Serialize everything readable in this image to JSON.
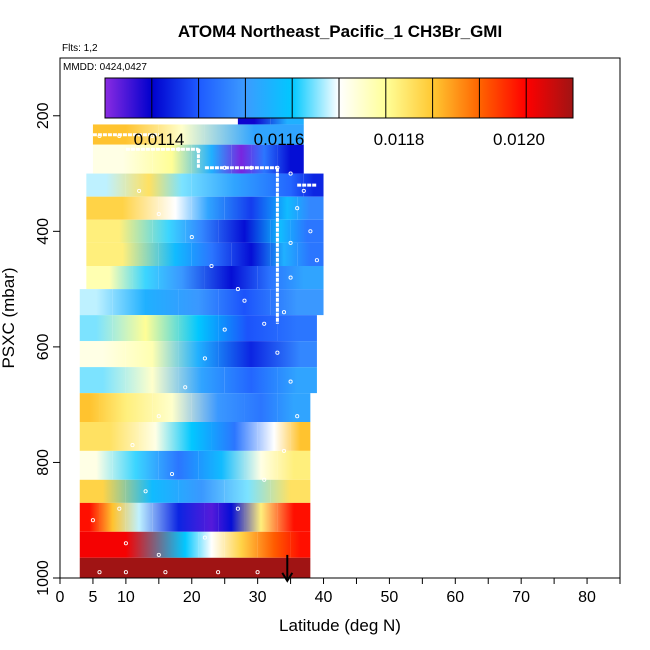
{
  "chart_data": {
    "type": "heatmap",
    "title": "ATOM4 Northeast_Pacific_1 CH3Br_GMI",
    "flights_note": "Flts: 1,2",
    "dates_note": "MMDD: 0424,0427",
    "xlabel": "Latitude (deg N)",
    "ylabel": "PSXC (mbar)",
    "xlim": [
      0,
      85
    ],
    "ylim": [
      1000,
      100
    ],
    "x_ticks": [
      0,
      5,
      10,
      20,
      30,
      40,
      50,
      60,
      70,
      80
    ],
    "y_ticks": [
      200,
      400,
      600,
      800,
      1000
    ],
    "colorbar": {
      "range": [
        0.01131,
        0.01209
      ],
      "ticks": [
        0.0114,
        0.0116,
        0.0118,
        0.012
      ],
      "tick_labels": [
        "0.0114",
        "0.0116",
        "0.0118",
        "0.0120"
      ],
      "colors": [
        "#8a2be2",
        "#0000cd",
        "#1e5aff",
        "#3c9bff",
        "#00c8ff",
        "#ffffff",
        "#ffff99",
        "#ffc832",
        "#ff6400",
        "#ff0000",
        "#a01414"
      ]
    },
    "bands": [
      {
        "p_top": 170,
        "p_bot": 215,
        "segments": [
          {
            "lat": [
              27,
              32
            ],
            "value": 0.01138
          },
          {
            "lat": [
              32,
              37
            ],
            "value": 0.01158
          }
        ]
      },
      {
        "p_top": 215,
        "p_bot": 250,
        "segments": [
          {
            "lat": [
              5,
              15
            ],
            "value": 0.01186
          },
          {
            "lat": [
              15,
              22
            ],
            "value": 0.01174
          },
          {
            "lat": [
              22,
              37
            ],
            "value": 0.01156
          }
        ]
      },
      {
        "p_top": 250,
        "p_bot": 300,
        "segments": [
          {
            "lat": [
              5,
              14
            ],
            "value": 0.01172
          },
          {
            "lat": [
              14,
              20
            ],
            "value": 0.01178
          },
          {
            "lat": [
              20,
              26
            ],
            "value": 0.01158
          },
          {
            "lat": [
              26,
              29
            ],
            "value": 0.01132
          },
          {
            "lat": [
              29,
              33
            ],
            "value": 0.0115
          },
          {
            "lat": [
              33,
              37
            ],
            "value": 0.0114
          }
        ]
      },
      {
        "p_top": 300,
        "p_bot": 340,
        "segments": [
          {
            "lat": [
              4,
              10
            ],
            "value": 0.01168
          },
          {
            "lat": [
              10,
              17
            ],
            "value": 0.01182
          },
          {
            "lat": [
              17,
              20
            ],
            "value": 0.01166
          },
          {
            "lat": [
              20,
              33
            ],
            "value": 0.01156
          },
          {
            "lat": [
              33,
              37
            ],
            "value": 0.01148
          },
          {
            "lat": [
              37,
              40
            ],
            "value": 0.01142
          }
        ]
      },
      {
        "p_top": 340,
        "p_bot": 380,
        "segments": [
          {
            "lat": [
              4,
              15
            ],
            "value": 0.01184
          },
          {
            "lat": [
              15,
              20
            ],
            "value": 0.0117
          },
          {
            "lat": [
              20,
              25
            ],
            "value": 0.01156
          },
          {
            "lat": [
              25,
              33
            ],
            "value": 0.01144
          },
          {
            "lat": [
              33,
              36
            ],
            "value": 0.0116
          },
          {
            "lat": [
              36,
              40
            ],
            "value": 0.01152
          }
        ]
      },
      {
        "p_top": 380,
        "p_bot": 420,
        "segments": [
          {
            "lat": [
              4,
              14
            ],
            "value": 0.0118
          },
          {
            "lat": [
              14,
              19
            ],
            "value": 0.01164
          },
          {
            "lat": [
              19,
              24
            ],
            "value": 0.01152
          },
          {
            "lat": [
              24,
              32
            ],
            "value": 0.0114
          },
          {
            "lat": [
              32,
              35
            ],
            "value": 0.0116
          },
          {
            "lat": [
              35,
              40
            ],
            "value": 0.0115
          }
        ]
      },
      {
        "p_top": 420,
        "p_bot": 460,
        "segments": [
          {
            "lat": [
              4,
              15
            ],
            "value": 0.0118
          },
          {
            "lat": [
              15,
              20
            ],
            "value": 0.0116
          },
          {
            "lat": [
              20,
              26
            ],
            "value": 0.0115
          },
          {
            "lat": [
              26,
              32
            ],
            "value": 0.0114
          },
          {
            "lat": [
              32,
              36
            ],
            "value": 0.01158
          },
          {
            "lat": [
              36,
              40
            ],
            "value": 0.0115
          }
        ]
      },
      {
        "p_top": 460,
        "p_bot": 500,
        "segments": [
          {
            "lat": [
              4,
              11
            ],
            "value": 0.01176
          },
          {
            "lat": [
              11,
              15
            ],
            "value": 0.01164
          },
          {
            "lat": [
              15,
              22
            ],
            "value": 0.01154
          },
          {
            "lat": [
              22,
              30
            ],
            "value": 0.0114
          },
          {
            "lat": [
              30,
              34
            ],
            "value": 0.0115
          },
          {
            "lat": [
              34,
              40
            ],
            "value": 0.01156
          }
        ]
      },
      {
        "p_top": 500,
        "p_bot": 545,
        "segments": [
          {
            "lat": [
              3,
              8
            ],
            "value": 0.01168
          },
          {
            "lat": [
              8,
              18
            ],
            "value": 0.01158
          },
          {
            "lat": [
              18,
              24
            ],
            "value": 0.01154
          },
          {
            "lat": [
              24,
              32
            ],
            "value": 0.01146
          },
          {
            "lat": [
              32,
              40
            ],
            "value": 0.01154
          }
        ]
      },
      {
        "p_top": 545,
        "p_bot": 590,
        "segments": [
          {
            "lat": [
              3,
              8
            ],
            "value": 0.01166
          },
          {
            "lat": [
              8,
              18
            ],
            "value": 0.01178
          },
          {
            "lat": [
              18,
              24
            ],
            "value": 0.01162
          },
          {
            "lat": [
              24,
              33
            ],
            "value": 0.01146
          },
          {
            "lat": [
              33,
              39
            ],
            "value": 0.0115
          }
        ]
      },
      {
        "p_top": 590,
        "p_bot": 635,
        "segments": [
          {
            "lat": [
              3,
              10
            ],
            "value": 0.01172
          },
          {
            "lat": [
              10,
              18
            ],
            "value": 0.01176
          },
          {
            "lat": [
              18,
              24
            ],
            "value": 0.01158
          },
          {
            "lat": [
              24,
              34
            ],
            "value": 0.01142
          },
          {
            "lat": [
              34,
              39
            ],
            "value": 0.01152
          }
        ]
      },
      {
        "p_top": 635,
        "p_bot": 680,
        "segments": [
          {
            "lat": [
              3,
              10
            ],
            "value": 0.01166
          },
          {
            "lat": [
              10,
              18
            ],
            "value": 0.01174
          },
          {
            "lat": [
              18,
              25
            ],
            "value": 0.01156
          },
          {
            "lat": [
              25,
              33
            ],
            "value": 0.01148
          },
          {
            "lat": [
              33,
              39
            ],
            "value": 0.01156
          }
        ]
      },
      {
        "p_top": 680,
        "p_bot": 730,
        "segments": [
          {
            "lat": [
              3,
              6
            ],
            "value": 0.01186
          },
          {
            "lat": [
              6,
              14
            ],
            "value": 0.0118
          },
          {
            "lat": [
              14,
              20
            ],
            "value": 0.01174
          },
          {
            "lat": [
              20,
              28
            ],
            "value": 0.01154
          },
          {
            "lat": [
              28,
              33
            ],
            "value": 0.0115
          },
          {
            "lat": [
              33,
              38
            ],
            "value": 0.01156
          }
        ]
      },
      {
        "p_top": 730,
        "p_bot": 780,
        "segments": [
          {
            "lat": [
              3,
              12
            ],
            "value": 0.01182
          },
          {
            "lat": [
              12,
              17
            ],
            "value": 0.01172
          },
          {
            "lat": [
              17,
              23
            ],
            "value": 0.01162
          },
          {
            "lat": [
              23,
              30
            ],
            "value": 0.0115
          },
          {
            "lat": [
              30,
              35
            ],
            "value": 0.0117
          },
          {
            "lat": [
              35,
              38
            ],
            "value": 0.01186
          }
        ]
      },
      {
        "p_top": 780,
        "p_bot": 830,
        "segments": [
          {
            "lat": [
              3,
              8
            ],
            "value": 0.01172
          },
          {
            "lat": [
              8,
              15
            ],
            "value": 0.01164
          },
          {
            "lat": [
              15,
              21
            ],
            "value": 0.0115
          },
          {
            "lat": [
              21,
              28
            ],
            "value": 0.0116
          },
          {
            "lat": [
              28,
              33
            ],
            "value": 0.01172
          },
          {
            "lat": [
              33,
              38
            ],
            "value": 0.0118
          }
        ]
      },
      {
        "p_top": 830,
        "p_bot": 870,
        "segments": [
          {
            "lat": [
              3,
              10
            ],
            "value": 0.01184
          },
          {
            "lat": [
              10,
              18
            ],
            "value": 0.0116
          },
          {
            "lat": [
              18,
              25
            ],
            "value": 0.01154
          },
          {
            "lat": [
              25,
              32
            ],
            "value": 0.01166
          },
          {
            "lat": [
              32,
              38
            ],
            "value": 0.01182
          }
        ]
      },
      {
        "p_top": 870,
        "p_bot": 920,
        "segments": [
          {
            "lat": [
              3,
              6
            ],
            "value": 0.012
          },
          {
            "lat": [
              6,
              10
            ],
            "value": 0.01186
          },
          {
            "lat": [
              10,
              14
            ],
            "value": 0.01168
          },
          {
            "lat": [
              14,
              22
            ],
            "value": 0.01142
          },
          {
            "lat": [
              22,
              24
            ],
            "value": 0.01134
          },
          {
            "lat": [
              24,
              28
            ],
            "value": 0.0114
          },
          {
            "lat": [
              28,
              33
            ],
            "value": 0.0118
          },
          {
            "lat": [
              33,
              38
            ],
            "value": 0.012
          }
        ]
      },
      {
        "p_top": 920,
        "p_bot": 965,
        "segments": [
          {
            "lat": [
              3,
              17
            ],
            "value": 0.01202
          },
          {
            "lat": [
              17,
              21
            ],
            "value": 0.01162
          },
          {
            "lat": [
              21,
              25
            ],
            "value": 0.0117
          },
          {
            "lat": [
              25,
              30
            ],
            "value": 0.01184
          },
          {
            "lat": [
              30,
              35
            ],
            "value": 0.01194
          },
          {
            "lat": [
              35,
              38
            ],
            "value": 0.012
          }
        ]
      },
      {
        "p_top": 965,
        "p_bot": 1010,
        "segments": [
          {
            "lat": [
              3,
              38
            ],
            "value": 0.01209
          }
        ]
      }
    ],
    "flight_markers": [
      {
        "lat": 6,
        "p": 235
      },
      {
        "lat": 9,
        "p": 235
      },
      {
        "lat": 14,
        "p": 235
      },
      {
        "lat": 18,
        "p": 258
      },
      {
        "lat": 21,
        "p": 260
      },
      {
        "lat": 25,
        "p": 290
      },
      {
        "lat": 29,
        "p": 290
      },
      {
        "lat": 33,
        "p": 290
      },
      {
        "lat": 29,
        "p": 200
      },
      {
        "lat": 33,
        "p": 200
      },
      {
        "lat": 35,
        "p": 300
      },
      {
        "lat": 36,
        "p": 360
      },
      {
        "lat": 35,
        "p": 420
      },
      {
        "lat": 35,
        "p": 480
      },
      {
        "lat": 34,
        "p": 540
      },
      {
        "lat": 37,
        "p": 330
      },
      {
        "lat": 38,
        "p": 400
      },
      {
        "lat": 39,
        "p": 450
      },
      {
        "lat": 12,
        "p": 330
      },
      {
        "lat": 15,
        "p": 370
      },
      {
        "lat": 20,
        "p": 410
      },
      {
        "lat": 23,
        "p": 460
      },
      {
        "lat": 27,
        "p": 500
      },
      {
        "lat": 31,
        "p": 560
      },
      {
        "lat": 33,
        "p": 610
      },
      {
        "lat": 35,
        "p": 660
      },
      {
        "lat": 36,
        "p": 720
      },
      {
        "lat": 34,
        "p": 780
      },
      {
        "lat": 31,
        "p": 830
      },
      {
        "lat": 27,
        "p": 880
      },
      {
        "lat": 22,
        "p": 930
      },
      {
        "lat": 15,
        "p": 960
      },
      {
        "lat": 10,
        "p": 940
      },
      {
        "lat": 6,
        "p": 990
      },
      {
        "lat": 10,
        "p": 990
      },
      {
        "lat": 16,
        "p": 990
      },
      {
        "lat": 24,
        "p": 990
      },
      {
        "lat": 30,
        "p": 990
      },
      {
        "lat": 5,
        "p": 900
      },
      {
        "lat": 9,
        "p": 880
      },
      {
        "lat": 13,
        "p": 850
      },
      {
        "lat": 17,
        "p": 820
      },
      {
        "lat": 11,
        "p": 770
      },
      {
        "lat": 15,
        "p": 720
      },
      {
        "lat": 19,
        "p": 670
      },
      {
        "lat": 22,
        "p": 620
      },
      {
        "lat": 25,
        "p": 570
      },
      {
        "lat": 28,
        "p": 520
      }
    ],
    "flight_paths": [
      [
        {
          "lat": 5,
          "p": 233
        },
        {
          "lat": 15,
          "p": 233
        }
      ],
      [
        {
          "lat": 10,
          "p": 258
        },
        {
          "lat": 21,
          "p": 258
        }
      ],
      [
        {
          "lat": 21,
          "p": 258
        },
        {
          "lat": 21,
          "p": 290
        }
      ],
      [
        {
          "lat": 22,
          "p": 290
        },
        {
          "lat": 33,
          "p": 290
        }
      ],
      [
        {
          "lat": 28,
          "p": 198
        },
        {
          "lat": 33,
          "p": 198
        }
      ],
      [
        {
          "lat": 33,
          "p": 290
        },
        {
          "lat": 33,
          "p": 560
        }
      ],
      [
        {
          "lat": 36,
          "p": 320
        },
        {
          "lat": 39,
          "p": 320
        }
      ]
    ],
    "arrow": {
      "lat": 34.5,
      "p_from": 960,
      "p_to": 1005
    }
  }
}
